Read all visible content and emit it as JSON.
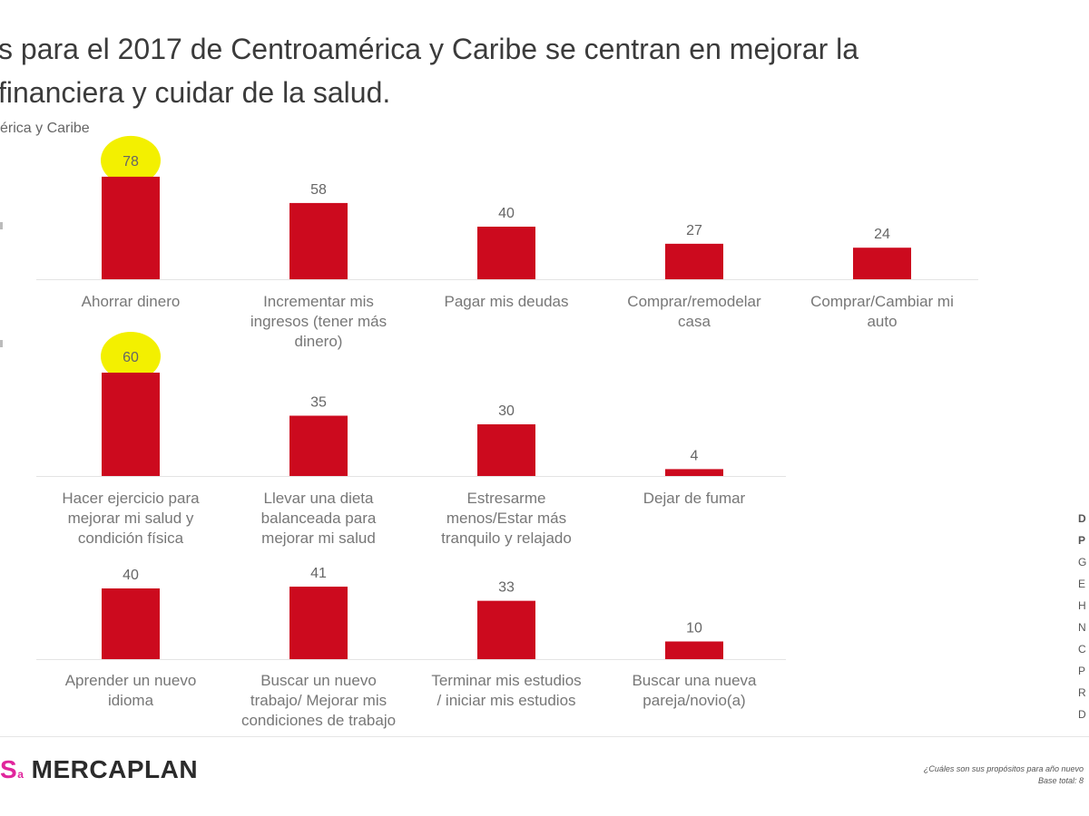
{
  "header": {
    "title_line1": "s para el 2017 de Centroamérica y Caribe se centran en mejorar la",
    "title_line2": "financiera y cuidar de la salud.",
    "subtitle": "érica y Caribe"
  },
  "chart_data": [
    {
      "type": "bar",
      "categories": [
        "Ahorrar dinero",
        "Incrementar mis\ningresos (tener más\ndinero)",
        "Pagar mis deudas",
        "Comprar/remodelar\ncasa",
        "Comprar/Cambiar mi\nauto"
      ],
      "values": [
        78,
        58,
        40,
        27,
        24
      ],
      "highlighted": [
        0
      ],
      "bar_color": "#cc0a1e",
      "highlight_color": "#f3f000"
    },
    {
      "type": "bar",
      "categories": [
        "Hacer ejercicio para\nmejorar mi salud y\ncondición física",
        "Llevar una dieta\nbalanceada para\nmejorar mi salud",
        "Estresarme\nmenos/Estar más\ntranquilo y relajado",
        "Dejar de fumar"
      ],
      "values": [
        60,
        35,
        30,
        4
      ],
      "highlighted": [
        0
      ],
      "bar_color": "#cc0a1e",
      "highlight_color": "#f3f000"
    },
    {
      "type": "bar",
      "categories": [
        "Aprender un nuevo\nidioma",
        "Buscar un nuevo\ntrabajo/ Mejorar mis\ncondiciones de trabajo",
        "Terminar mis estudios\n/ iniciar mis estudios",
        "Buscar una nueva\npareja/novio(a)"
      ],
      "values": [
        40,
        41,
        33,
        10
      ],
      "highlighted": [],
      "bar_color": "#cc0a1e",
      "highlight_color": "#f3f000"
    }
  ],
  "side_legend": {
    "header_1": "D",
    "header_2": "P",
    "items": [
      "G",
      "E",
      "H",
      "N",
      "C",
      "P",
      "R",
      "D"
    ]
  },
  "footer": {
    "logo_mark": "S",
    "logo_mark_suffix": "a",
    "logo_name": "MERCAPLAN",
    "question": "¿Cuáles son sus propósitos para año nuevo",
    "base": "Base total: 8"
  }
}
